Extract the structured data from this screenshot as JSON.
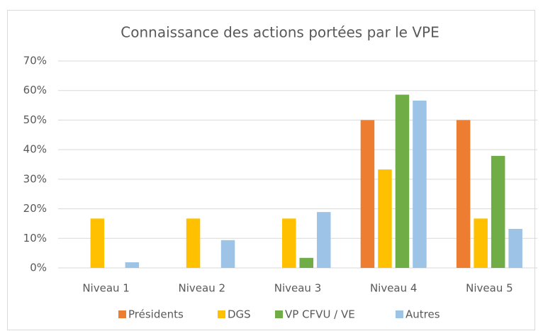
{
  "chart_data": {
    "type": "bar",
    "title": "Connaissance des actions portées par le VPE",
    "categories": [
      "Niveau 1",
      "Niveau 2",
      "Niveau 3",
      "Niveau 4",
      "Niveau 5"
    ],
    "series": [
      {
        "name": "Présidents",
        "color": "#ED7D31",
        "values": [
          0,
          0,
          0,
          50,
          50
        ]
      },
      {
        "name": "DGS",
        "color": "#FFC000",
        "values": [
          16.7,
          16.7,
          16.7,
          33.3,
          16.7
        ]
      },
      {
        "name": "VP CFVU / VE",
        "color": "#70AD47",
        "values": [
          0,
          0,
          3.4,
          58.6,
          37.9
        ]
      },
      {
        "name": "Autres",
        "color": "#9DC3E6",
        "values": [
          1.9,
          9.4,
          18.9,
          56.6,
          13.2
        ]
      }
    ],
    "ylim": [
      0,
      70
    ],
    "yticks": [
      {
        "value": 0,
        "label": "0%"
      },
      {
        "value": 10,
        "label": "10%"
      },
      {
        "value": 20,
        "label": "20%"
      },
      {
        "value": 30,
        "label": "30%"
      },
      {
        "value": 40,
        "label": "40%"
      },
      {
        "value": 50,
        "label": "50%"
      },
      {
        "value": 60,
        "label": "60%"
      },
      {
        "value": 70,
        "label": "70%"
      }
    ],
    "grid": true,
    "legend": "bottom"
  }
}
